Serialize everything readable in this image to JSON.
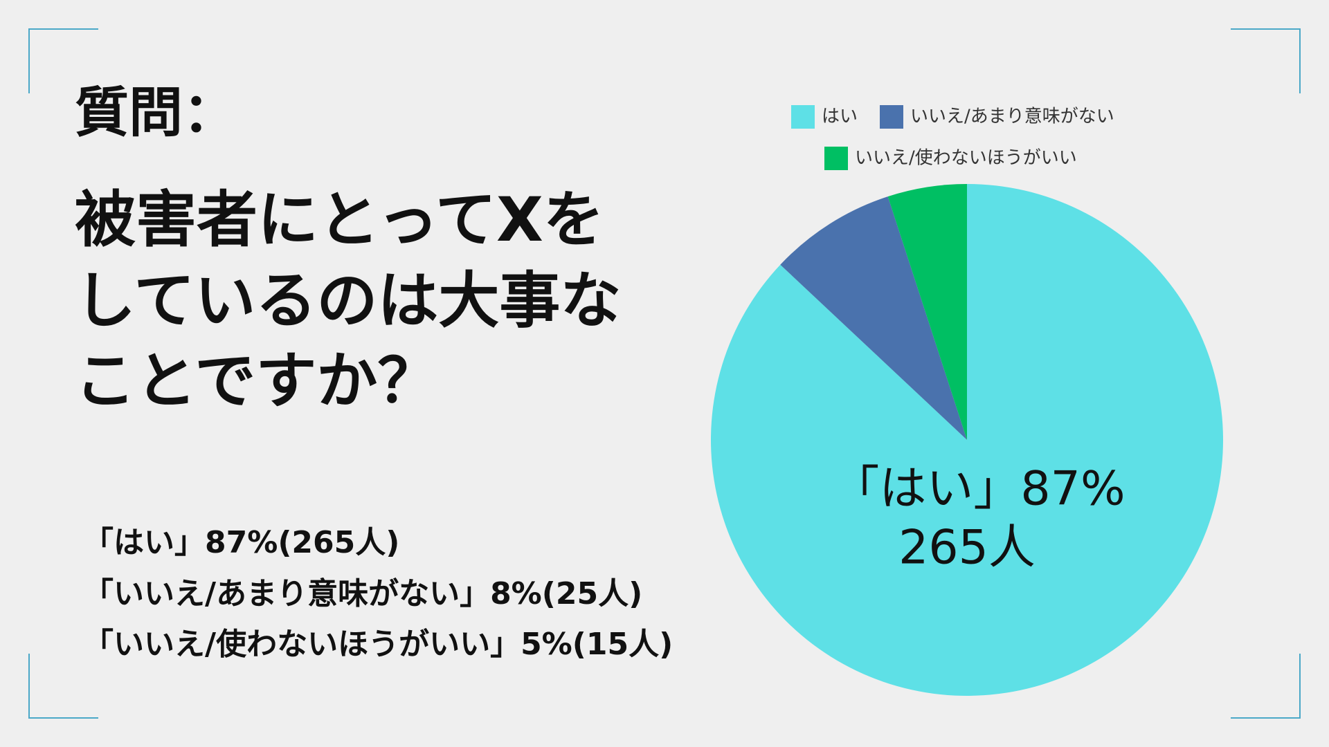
{
  "header": {
    "title": "質問：",
    "question": [
      "被害者にとってXを",
      "しているのは大事な",
      "ことですか？"
    ]
  },
  "summary": [
    "「はい」87%(265人)",
    "「いいえ/あまり意味がない」8%(25人)",
    "「いいえ/使わないほうがいい」5%(15人)"
  ],
  "chart_data": {
    "type": "pie",
    "categories": [
      "はい",
      "いいえ/あまり意味がない",
      "いいえ/使わないほうがいい"
    ],
    "values": [
      87,
      8,
      5
    ],
    "value_labels": [
      "「はい」87%",
      null,
      null
    ],
    "count_labels": [
      "265人",
      null,
      null
    ],
    "colors": [
      "#5ee0e6",
      "#4a72ad",
      "#00bf63"
    ],
    "legend": "top"
  }
}
